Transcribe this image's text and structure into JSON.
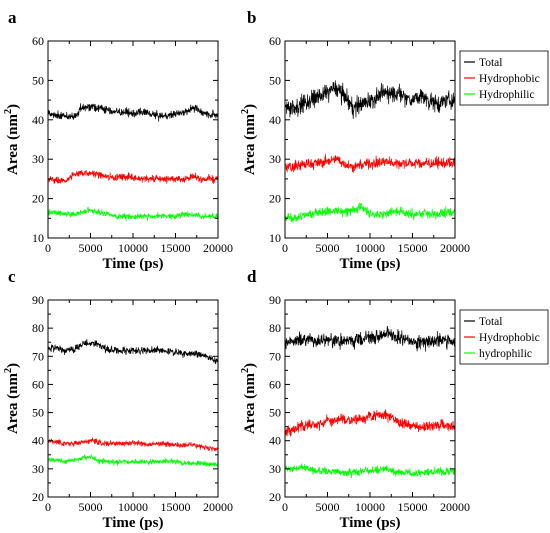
{
  "figure": {
    "panels": [
      {
        "panel_label": "a",
        "chart_data": {
          "type": "line",
          "xlabel": "Time (ps)",
          "ylabel": "Area (nm",
          "ylabel_sup": "2",
          "ylabel_close": ")",
          "xlim": [
            0,
            20000
          ],
          "ylim": [
            10,
            60
          ],
          "xticks": [
            0,
            5000,
            10000,
            15000,
            20000
          ],
          "yticks": [
            10,
            20,
            30,
            40,
            50,
            60
          ],
          "grid": false,
          "legend": null,
          "series": [
            {
              "color": "#000000",
              "x": [
                0,
                1000,
                2000,
                3000,
                4000,
                5000,
                6000,
                7000,
                8000,
                9000,
                10000,
                11000,
                12000,
                13000,
                14000,
                15000,
                16000,
                17000,
                18000,
                19000,
                20000
              ],
              "y": [
                42,
                41,
                41,
                40.5,
                43,
                43.5,
                43,
                42.5,
                42,
                42,
                41.5,
                42,
                41.5,
                41,
                41,
                41.5,
                42,
                43,
                42,
                41.5,
                41
              ],
              "noise": 1.1
            },
            {
              "color": "#ff0000",
              "x": [
                0,
                1000,
                2000,
                3000,
                4000,
                5000,
                6000,
                7000,
                8000,
                9000,
                10000,
                11000,
                12000,
                13000,
                14000,
                15000,
                16000,
                17000,
                18000,
                19000,
                20000
              ],
              "y": [
                25,
                24.5,
                24.5,
                26,
                26.5,
                26.5,
                26,
                25.5,
                25.5,
                25.5,
                25.5,
                25,
                25,
                25,
                25,
                25,
                25,
                25.5,
                25,
                25,
                25
              ],
              "noise": 1.0
            },
            {
              "color": "#00ff00",
              "x": [
                0,
                1000,
                2000,
                3000,
                4000,
                5000,
                6000,
                7000,
                8000,
                9000,
                10000,
                11000,
                12000,
                13000,
                14000,
                15000,
                16000,
                17000,
                18000,
                19000,
                20000
              ],
              "y": [
                16.5,
                16.5,
                16,
                16,
                16.5,
                17,
                16.5,
                16,
                15.5,
                15.5,
                15.5,
                15.5,
                15.5,
                15.5,
                15.5,
                15.5,
                16,
                16,
                15.5,
                15.5,
                15.5
              ],
              "noise": 0.8
            }
          ]
        }
      },
      {
        "panel_label": "b",
        "chart_data": {
          "type": "line",
          "xlabel": "Time (ps)",
          "ylabel": "Area (nm",
          "ylabel_sup": "2",
          "ylabel_close": ")",
          "xlim": [
            0,
            20000
          ],
          "ylim": [
            10,
            60
          ],
          "xticks": [
            0,
            5000,
            10000,
            15000,
            20000
          ],
          "yticks": [
            10,
            20,
            30,
            40,
            50,
            60
          ],
          "grid": false,
          "legend": {
            "position": "top-right",
            "entries": [
              "Total",
              "Hydrophobic",
              "Hydrophilic"
            ]
          },
          "series": [
            {
              "name": "Total",
              "color": "#000000",
              "x": [
                0,
                1000,
                2000,
                3000,
                4000,
                5000,
                6000,
                7000,
                8000,
                9000,
                10000,
                11000,
                12000,
                13000,
                14000,
                15000,
                16000,
                17000,
                18000,
                19000,
                20000
              ],
              "y": [
                43,
                43,
                44,
                45,
                46,
                47,
                48,
                46,
                43,
                44,
                45,
                46,
                47,
                47,
                46,
                45,
                46,
                45,
                44,
                45,
                45
              ],
              "noise": 2.4
            },
            {
              "name": "Hydrophobic",
              "color": "#ff0000",
              "x": [
                0,
                1000,
                2000,
                3000,
                4000,
                5000,
                6000,
                7000,
                8000,
                9000,
                10000,
                11000,
                12000,
                13000,
                14000,
                15000,
                16000,
                17000,
                18000,
                19000,
                20000
              ],
              "y": [
                28,
                28,
                28.5,
                29,
                29,
                29.5,
                30,
                29,
                28,
                28.5,
                29,
                29,
                29.5,
                29,
                29,
                29,
                29,
                29,
                29,
                29,
                29
              ],
              "noise": 1.5
            },
            {
              "name": "Hydrophilic",
              "color": "#00ff00",
              "x": [
                0,
                1000,
                2000,
                3000,
                4000,
                5000,
                6000,
                7000,
                8000,
                9000,
                10000,
                11000,
                12000,
                13000,
                14000,
                15000,
                16000,
                17000,
                18000,
                19000,
                20000
              ],
              "y": [
                15,
                15,
                15.5,
                16,
                16.5,
                17,
                17,
                16.5,
                17,
                17.5,
                16,
                16,
                16.5,
                17,
                16.5,
                16,
                16,
                16,
                16,
                16.5,
                16.5
              ],
              "noise": 1.3
            }
          ]
        }
      },
      {
        "panel_label": "c",
        "chart_data": {
          "type": "line",
          "xlabel": "Time (ps)",
          "ylabel": "Area (nm",
          "ylabel_sup": "2",
          "ylabel_close": ")",
          "xlim": [
            0,
            20000
          ],
          "ylim": [
            20,
            90
          ],
          "xticks": [
            0,
            5000,
            10000,
            15000,
            20000
          ],
          "yticks": [
            20,
            30,
            40,
            50,
            60,
            70,
            80,
            90
          ],
          "grid": false,
          "legend": null,
          "series": [
            {
              "color": "#000000",
              "x": [
                0,
                1000,
                2000,
                3000,
                4000,
                5000,
                6000,
                7000,
                8000,
                9000,
                10000,
                11000,
                12000,
                13000,
                14000,
                15000,
                16000,
                17000,
                18000,
                19000,
                20000
              ],
              "y": [
                73,
                73,
                72,
                72.5,
                74,
                75,
                74,
                72.5,
                72,
                72,
                72,
                72,
                72,
                72,
                71.5,
                71.5,
                71,
                71,
                70.5,
                69.5,
                68.5
              ],
              "noise": 1.4
            },
            {
              "color": "#ff0000",
              "x": [
                0,
                1000,
                2000,
                3000,
                4000,
                5000,
                6000,
                7000,
                8000,
                9000,
                10000,
                11000,
                12000,
                13000,
                14000,
                15000,
                16000,
                17000,
                18000,
                19000,
                20000
              ],
              "y": [
                40,
                39.5,
                39,
                39,
                39.5,
                40,
                39.5,
                39,
                39,
                39,
                39,
                39,
                38.5,
                39,
                39,
                38.5,
                38.5,
                38.5,
                38,
                37.5,
                37
              ],
              "noise": 1.0
            },
            {
              "color": "#00ff00",
              "x": [
                0,
                1000,
                2000,
                3000,
                4000,
                5000,
                6000,
                7000,
                8000,
                9000,
                10000,
                11000,
                12000,
                13000,
                14000,
                15000,
                16000,
                17000,
                18000,
                19000,
                20000
              ],
              "y": [
                33,
                33,
                32.5,
                33,
                34,
                34,
                33,
                32.5,
                32.5,
                32.5,
                32.5,
                32.5,
                32.5,
                32.5,
                32.5,
                32.5,
                32,
                32,
                32,
                31.5,
                31.5
              ],
              "noise": 1.0
            }
          ]
        }
      },
      {
        "panel_label": "d",
        "chart_data": {
          "type": "line",
          "xlabel": "Time (ps)",
          "ylabel": "Area (nm",
          "ylabel_sup": "2",
          "ylabel_close": ")",
          "xlim": [
            0,
            20000
          ],
          "ylim": [
            20,
            90
          ],
          "xticks": [
            0,
            5000,
            10000,
            15000,
            20000
          ],
          "yticks": [
            20,
            30,
            40,
            50,
            60,
            70,
            80,
            90
          ],
          "grid": false,
          "legend": {
            "position": "top-right",
            "entries": [
              "Total",
              "Hydrophobic",
              "hydrophilic"
            ]
          },
          "series": [
            {
              "name": "Total",
              "color": "#000000",
              "x": [
                0,
                1000,
                2000,
                3000,
                4000,
                5000,
                6000,
                7000,
                8000,
                9000,
                10000,
                11000,
                12000,
                13000,
                14000,
                15000,
                16000,
                17000,
                18000,
                19000,
                20000
              ],
              "y": [
                75,
                75,
                76,
                75.5,
                76,
                76,
                75.5,
                75,
                76,
                76,
                77,
                77,
                78,
                77,
                76,
                75,
                75,
                75.5,
                76,
                75.5,
                75.5
              ],
              "noise": 2.6
            },
            {
              "name": "Hydrophobic",
              "color": "#ff0000",
              "x": [
                0,
                1000,
                2000,
                3000,
                4000,
                5000,
                6000,
                7000,
                8000,
                9000,
                10000,
                11000,
                12000,
                13000,
                14000,
                15000,
                16000,
                17000,
                18000,
                19000,
                20000
              ],
              "y": [
                43,
                44,
                45,
                46,
                46,
                47,
                47,
                47.5,
                47.5,
                48,
                48.5,
                49,
                49,
                47.5,
                46,
                45.5,
                45,
                45,
                45.5,
                45.5,
                45
              ],
              "noise": 2.0
            },
            {
              "name": "hydrophilic",
              "color": "#00ff00",
              "x": [
                0,
                1000,
                2000,
                3000,
                4000,
                5000,
                6000,
                7000,
                8000,
                9000,
                10000,
                11000,
                12000,
                13000,
                14000,
                15000,
                16000,
                17000,
                18000,
                19000,
                20000
              ],
              "y": [
                30,
                30,
                30.5,
                29.5,
                29,
                29,
                29,
                28.5,
                28.5,
                29,
                29.5,
                29.5,
                30,
                29,
                28.5,
                28.5,
                28.5,
                29,
                29,
                29,
                29.5
              ],
              "noise": 1.5
            }
          ]
        }
      }
    ]
  }
}
